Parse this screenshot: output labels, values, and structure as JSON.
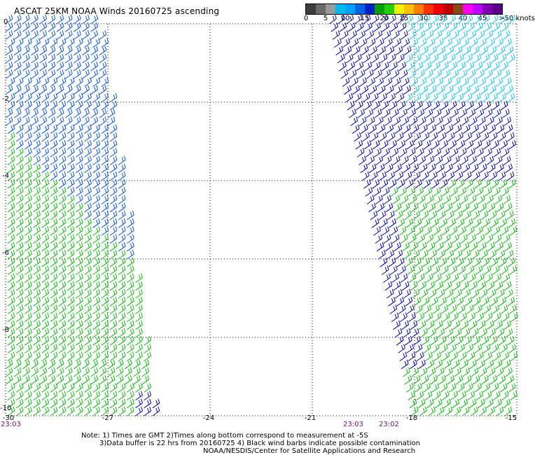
{
  "title": "ASCAT 25KM NOAA Winds 20160725 ascending",
  "legend": {
    "colors": [
      "#3c3c3c",
      "#6a6a6a",
      "#9a9a9a",
      "#00b8f0",
      "#00a0ff",
      "#0064e6",
      "#0020c8",
      "#00a000",
      "#20d000",
      "#f0f000",
      "#ffc000",
      "#ff8000",
      "#ff3000",
      "#f00000",
      "#c00000",
      "#8b4513",
      "#ff00ff",
      "#c000ff",
      "#8000b0",
      "#5a0090"
    ],
    "labels": [
      "0",
      "5",
      "10",
      "15",
      "20",
      "25",
      "30",
      "35",
      "40",
      "45",
      ">50 knots"
    ]
  },
  "axes": {
    "x_ticks": [
      "-30",
      "-27",
      "-24",
      "-21",
      "-18",
      "-15"
    ],
    "y_ticks": [
      "0",
      "-2",
      "-4",
      "-6",
      "-8",
      "-10"
    ],
    "times": [
      "23:03",
      "23:03",
      "23:02"
    ]
  },
  "notes": [
    "Note: 1) Times are GMT 2)Times along bottom correspond to measurement at -5S",
    "3)Data buffer is 22 hrs from 20160725 4) Black wind barbs indicate possible contamination",
    "NOAA/NESDIS/Center for Satellite Applications and Research"
  ],
  "map": {
    "lon_range": [
      -30,
      -15
    ],
    "lat_range": [
      -10,
      0
    ],
    "grid": "dotted",
    "swaths": [
      {
        "name": "west-swath",
        "lon_top": [
          -30,
          -27.2
        ],
        "lon_bottom": [
          -30,
          -25.6
        ]
      },
      {
        "name": "east-swath",
        "lon_top": [
          -20.5,
          -15.1
        ],
        "lon_bottom": [
          -18.1,
          -15
        ]
      }
    ],
    "barb_colors": {
      "light": "#00c8ff",
      "medium": "#0050ff",
      "dark": "#0000c8",
      "green": "#00c000"
    }
  }
}
